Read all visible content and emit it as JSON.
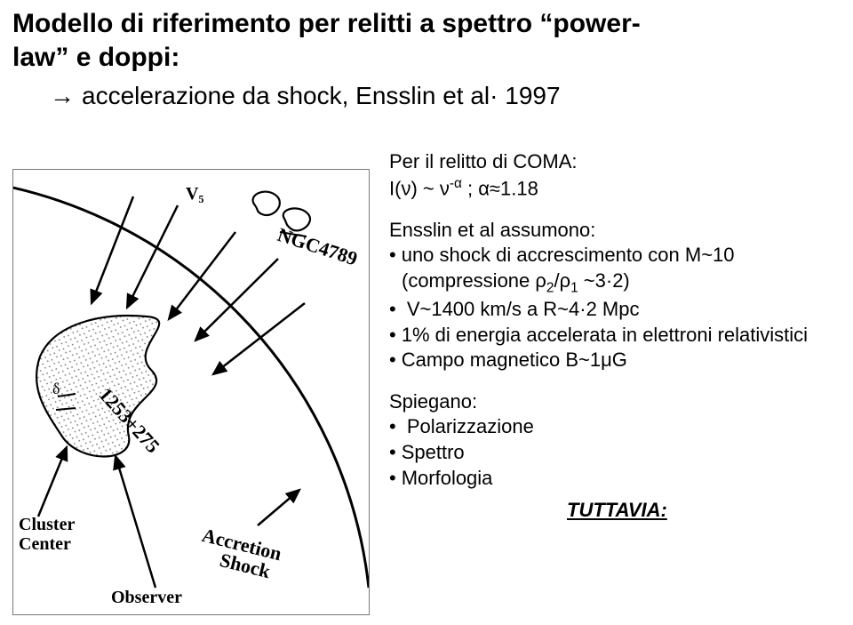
{
  "title": {
    "line1": "Modello di riferimento per relitti a spettro “power-",
    "line2": "law” e doppi:",
    "subline_arrow": "→",
    "subline": "accelerazione da shock, Ensslin et al· 1997"
  },
  "right": {
    "relitto_head": "Per il relitto di COMA:",
    "relitto_formula_html": "I(ν) ~ ν<span class='sup'>-α</span> ; α≈1.18",
    "assumono_head": "Ensslin et al assumono:",
    "assumono_items": [
      "uno shock di accrescimento con M~10 (compressione ρ<span class='sub'>2</span>/ρ<span class='sub'>1</span> ~3·2)",
      " V~1400 km/s a R~4·2 Mpc",
      "1% di energia accelerata in elettroni relativistici",
      "Campo magnetico B~1μG"
    ],
    "spiegano_head": "Spiegano:",
    "spiegano_items": [
      " Polarizzazione",
      "Spettro",
      "Morfologia"
    ],
    "tuttavia": "TUTTAVIA:"
  },
  "diagram": {
    "labels": {
      "vs": "V₅",
      "ngc": "NGC4789",
      "obj": "1253+275",
      "cluster1": "Cluster",
      "cluster2": "Center",
      "observer": "Observer",
      "accretion": "Accretion",
      "shock": "Shock",
      "delta": "δ"
    },
    "colors": {
      "stroke": "#000000",
      "fill_hatch": "#e9e9e9",
      "border": "#7a7a7a",
      "text": "#000000",
      "bg": "#ffffff"
    },
    "style": {
      "stroke_width": 2.2,
      "label_fontsize_serif": 20,
      "label_fontsize_hand": 22
    }
  }
}
